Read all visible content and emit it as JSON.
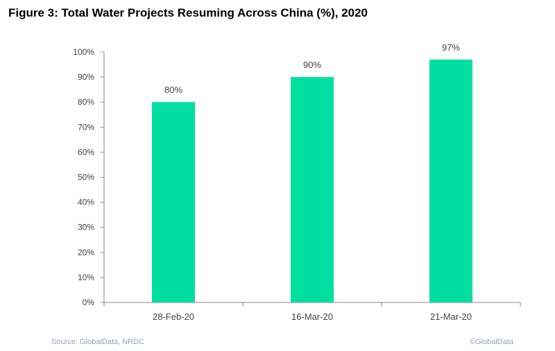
{
  "figure": {
    "title": "Figure 3: Total Water Projects Resuming Across China (%), 2020",
    "source": "Source: GlobalData, NRDC",
    "copyright": "©GlobalData"
  },
  "chart_data": {
    "type": "bar",
    "title": "Figure 3: Total Water Projects Resuming Across China (%), 2020",
    "xlabel": "",
    "ylabel": "",
    "categories": [
      "28-Feb-20",
      "16-Mar-20",
      "21-Mar-20"
    ],
    "values": [
      80,
      90,
      97
    ],
    "data_labels": [
      "80%",
      "90%",
      "97%"
    ],
    "ylim": [
      0,
      100
    ],
    "yticks": [
      0,
      10,
      20,
      30,
      40,
      50,
      60,
      70,
      80,
      90,
      100
    ],
    "ytick_labels": [
      "0%",
      "10%",
      "20%",
      "30%",
      "40%",
      "50%",
      "60%",
      "70%",
      "80%",
      "90%",
      "100%"
    ],
    "grid": false,
    "legend": "none",
    "colors": {
      "bar": "#00DEA2",
      "axis": "#888888",
      "text": "#404040"
    }
  }
}
